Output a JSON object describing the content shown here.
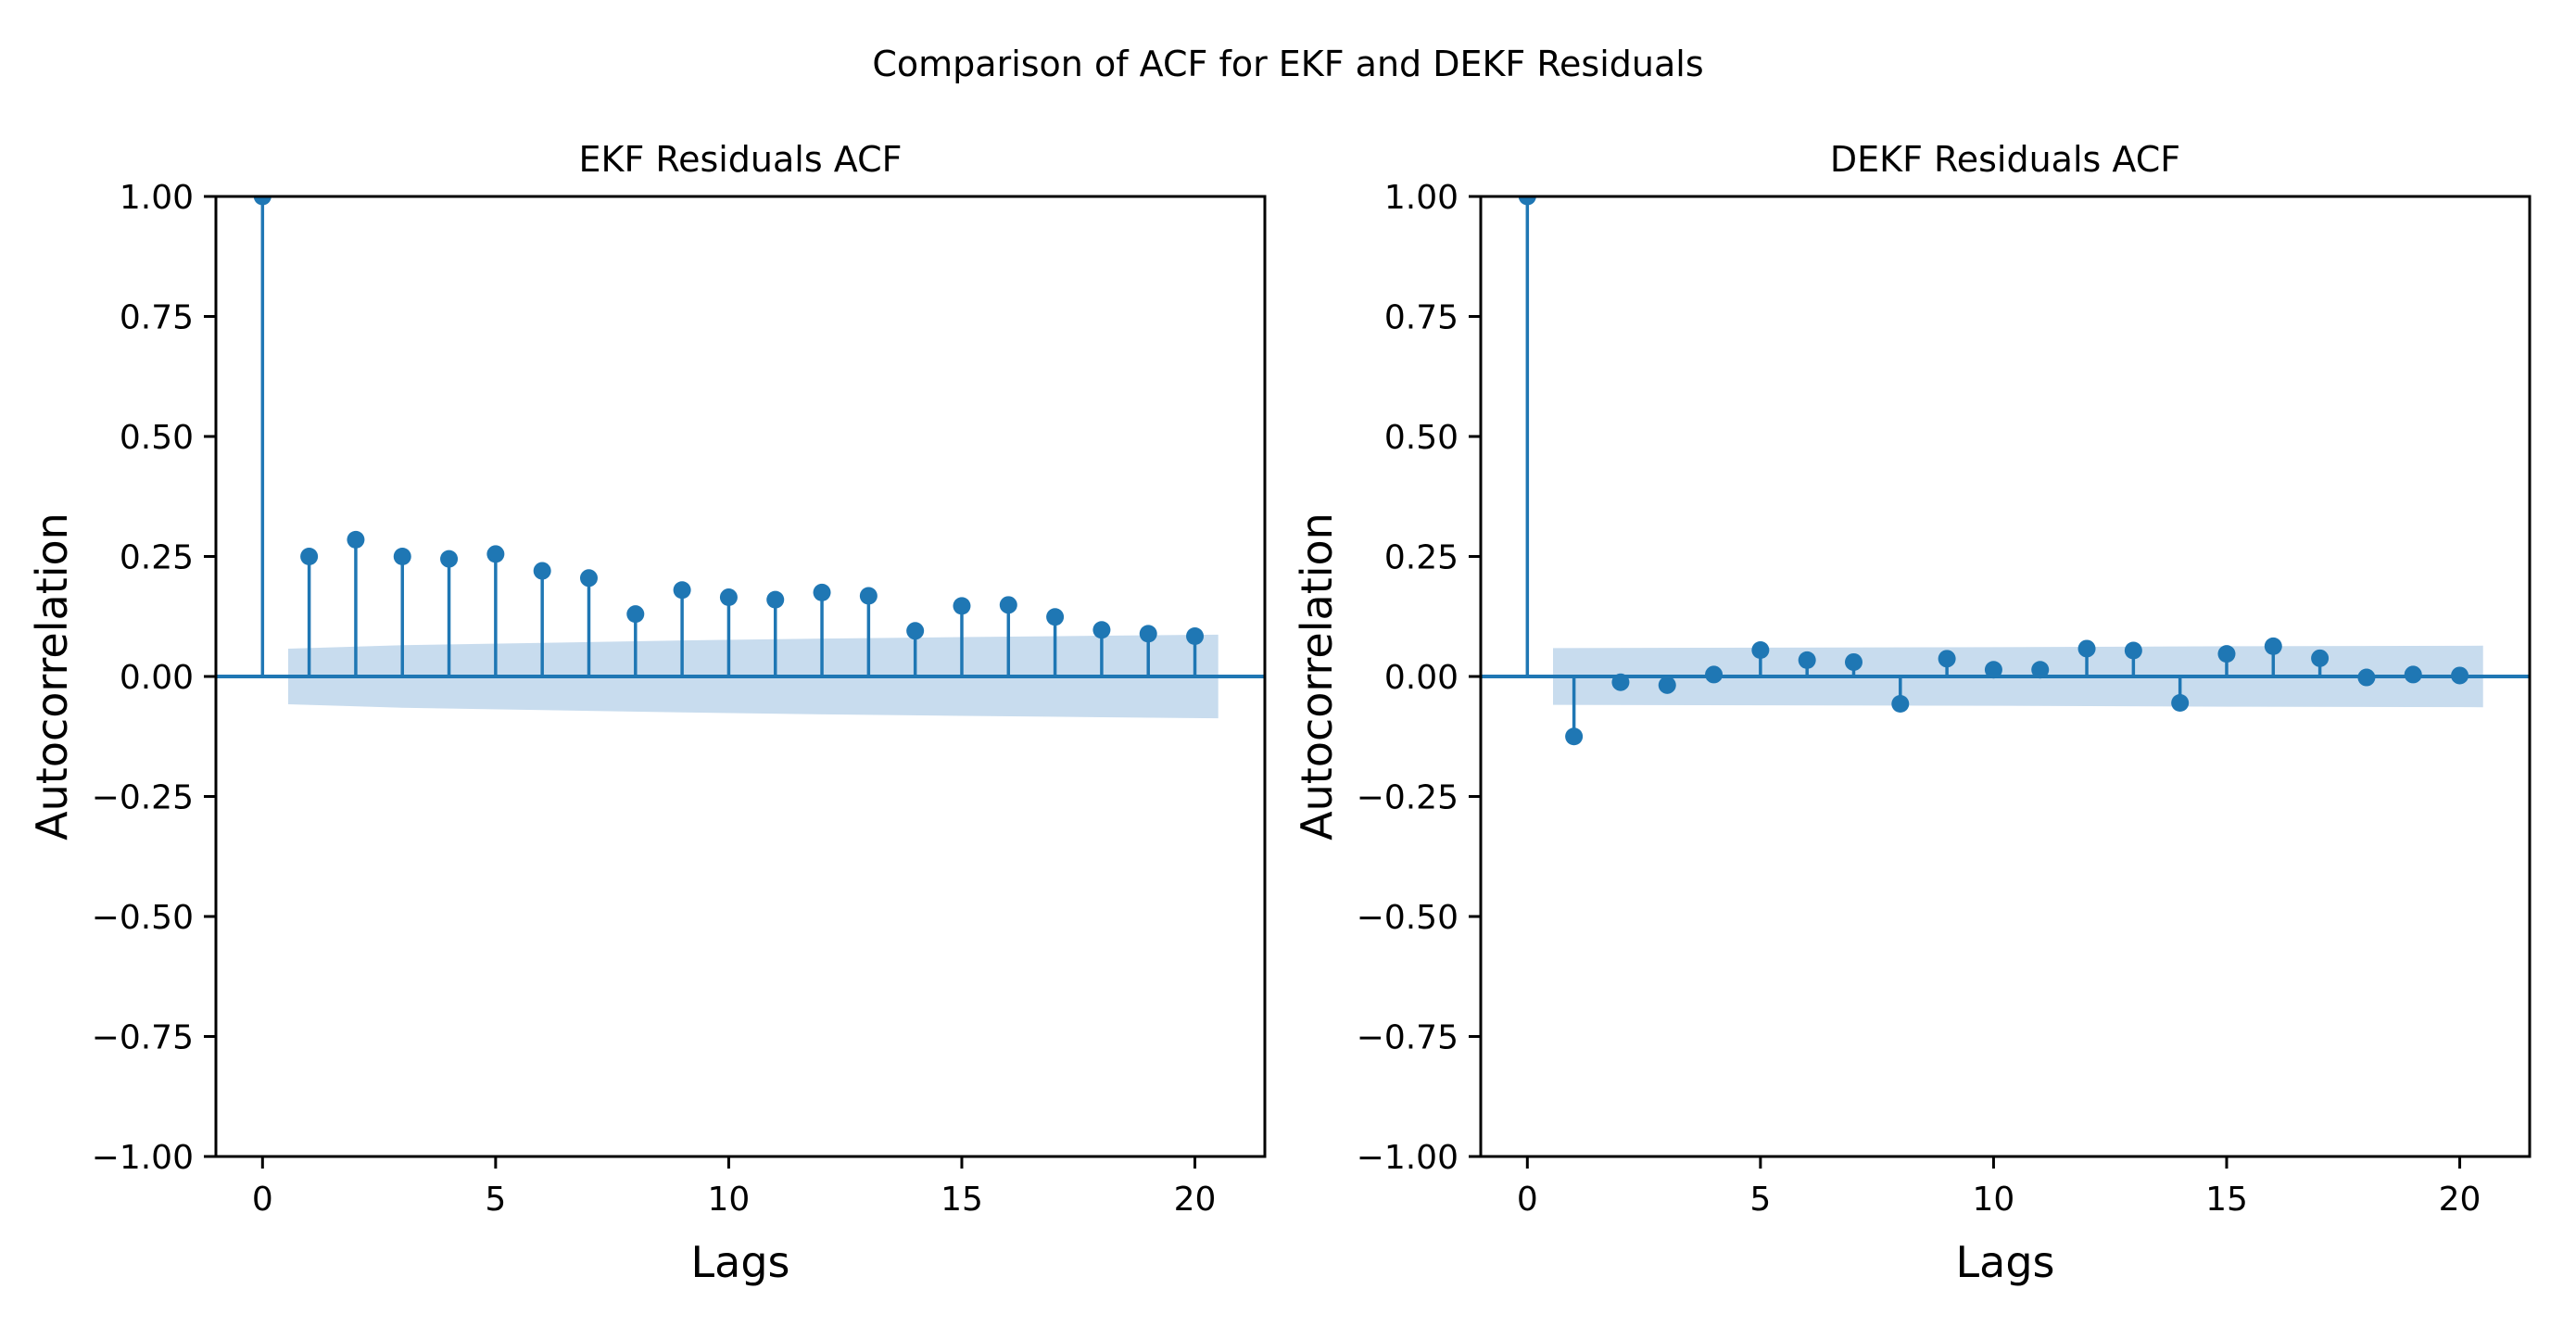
{
  "figure": {
    "suptitle": "Comparison of ACF for EKF and DEKF Residuals",
    "background_color": "#ffffff",
    "accent_color": "#1f77b4",
    "band_color": "#c8dcee",
    "spine_color": "#000000",
    "text_color": "#000000"
  },
  "chart_data": [
    {
      "type": "stem",
      "title": "EKF Residuals ACF",
      "xlabel": "Lags",
      "ylabel": "Autocorrelation",
      "xlim": [
        -1.0,
        21.5
      ],
      "ylim": [
        -1.0,
        1.0
      ],
      "grid": false,
      "legend": null,
      "xticks": [
        0,
        5,
        10,
        15,
        20
      ],
      "xticklabels": [
        "0",
        "5",
        "10",
        "15",
        "20"
      ],
      "yticks": [
        1.0,
        0.75,
        0.5,
        0.25,
        0.0,
        -0.25,
        -0.5,
        -0.75,
        -1.0
      ],
      "yticklabels": [
        "1.00",
        "0.75",
        "0.50",
        "0.25",
        "0.00",
        "−0.25",
        "−0.50",
        "−0.75",
        "−1.00"
      ],
      "lags": [
        0,
        1,
        2,
        3,
        4,
        5,
        6,
        7,
        8,
        9,
        10,
        11,
        12,
        13,
        14,
        15,
        16,
        17,
        18,
        19,
        20
      ],
      "values": [
        1.0,
        0.25,
        0.285,
        0.25,
        0.245,
        0.255,
        0.22,
        0.205,
        0.13,
        0.18,
        0.165,
        0.16,
        0.175,
        0.168,
        0.095,
        0.147,
        0.149,
        0.124,
        0.097,
        0.089,
        0.084
      ],
      "conf_band": {
        "description": "symmetric confidence band around zero",
        "anchors_lag_halfwidth": [
          [
            0.55,
            0.058
          ],
          [
            3,
            0.065
          ],
          [
            6,
            0.07
          ],
          [
            9,
            0.075
          ],
          [
            12,
            0.079
          ],
          [
            15,
            0.082
          ],
          [
            18,
            0.085
          ],
          [
            20.5,
            0.087
          ]
        ]
      }
    },
    {
      "type": "stem",
      "title": "DEKF Residuals ACF",
      "xlabel": "Lags",
      "ylabel": "Autocorrelation",
      "xlim": [
        -1.0,
        21.5
      ],
      "ylim": [
        -1.0,
        1.0
      ],
      "grid": false,
      "legend": null,
      "xticks": [
        0,
        5,
        10,
        15,
        20
      ],
      "xticklabels": [
        "0",
        "5",
        "10",
        "15",
        "20"
      ],
      "yticks": [
        1.0,
        0.75,
        0.5,
        0.25,
        0.0,
        -0.25,
        -0.5,
        -0.75,
        -1.0
      ],
      "yticklabels": [
        "1.00",
        "0.75",
        "0.50",
        "0.25",
        "0.00",
        "−0.25",
        "−0.50",
        "−0.75",
        "−1.00"
      ],
      "lags": [
        0,
        1,
        2,
        3,
        4,
        5,
        6,
        7,
        8,
        9,
        10,
        11,
        12,
        13,
        14,
        15,
        16,
        17,
        18,
        19,
        20
      ],
      "values": [
        1.0,
        -0.125,
        -0.012,
        -0.018,
        0.004,
        0.055,
        0.034,
        0.03,
        -0.057,
        0.037,
        0.014,
        0.014,
        0.058,
        0.054,
        -0.055,
        0.047,
        0.063,
        0.038,
        -0.002,
        0.004,
        0.002
      ],
      "conf_band": {
        "description": "symmetric confidence band around zero",
        "anchors_lag_halfwidth": [
          [
            0.55,
            0.059
          ],
          [
            5,
            0.06
          ],
          [
            10,
            0.061
          ],
          [
            15,
            0.063
          ],
          [
            20.5,
            0.064
          ]
        ]
      }
    }
  ]
}
